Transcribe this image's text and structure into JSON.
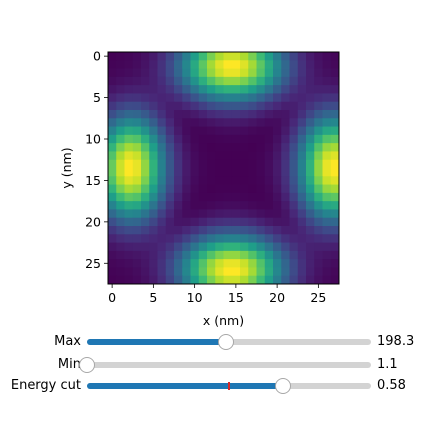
{
  "chart_data": {
    "type": "heatmap",
    "colormap": "viridis",
    "grid_size": [
      28,
      28
    ],
    "xlabel": "x (nm)",
    "ylabel": "y (nm)",
    "x_ticks": [
      0,
      5,
      10,
      15,
      20,
      25
    ],
    "y_ticks": [
      0,
      5,
      10,
      15,
      20,
      25
    ],
    "xlim": [
      -0.5,
      27.5
    ],
    "ylim": [
      27.5,
      -0.5
    ],
    "y_axis_inverted": true,
    "peaks_xy": [
      [
        14.5,
        0.5
      ],
      [
        22.5,
        5.5
      ],
      [
        27,
        13.5
      ],
      [
        22.5,
        21.5
      ],
      [
        14.5,
        26.5
      ],
      [
        6.5,
        21.5
      ],
      [
        1,
        13.5
      ],
      [
        6.5,
        5.5
      ]
    ],
    "minimum_xy": [
      14.5,
      13.5
    ]
  },
  "sliders": [
    {
      "label": "Max",
      "value": "198.3",
      "fraction": 0.49
    },
    {
      "label": "Min",
      "value": "1.1",
      "fraction": 0.0
    },
    {
      "label": "Energy cut",
      "value": "0.58",
      "fraction": 0.69,
      "marker_fraction": 0.5
    }
  ],
  "colors": {
    "slider_fill": "#1f77b4",
    "slider_track": "#d3d3d3",
    "slider_marker": "#d62728"
  }
}
